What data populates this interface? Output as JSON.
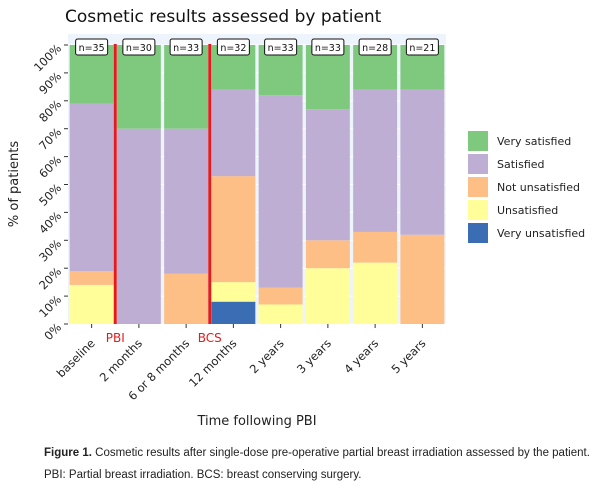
{
  "chart_data": {
    "type": "bar",
    "stacked": true,
    "title": "Cosmetic results assessed by patient",
    "xlabel": "Time following PBI",
    "ylabel": "% of patients",
    "ylim": [
      0,
      100
    ],
    "yticks": [
      "0%",
      "10%",
      "20%",
      "30%",
      "40%",
      "50%",
      "60%",
      "70%",
      "80%",
      "90%",
      "100%"
    ],
    "categories": [
      "baseline",
      "2 months",
      "6 or 8 months",
      "12 months",
      "2 years",
      "3 years",
      "4 years",
      "5 years"
    ],
    "n_labels": [
      "n=35",
      "n=30",
      "n=33",
      "n=32",
      "n=33",
      "n=33",
      "n=28",
      "n=21"
    ],
    "series": [
      {
        "name": "Very unsatisfied",
        "color": "#3b6db4",
        "values": [
          0,
          0,
          0,
          8,
          0,
          0,
          0,
          0
        ]
      },
      {
        "name": "Unsatisfied",
        "color": "#fffe99",
        "values": [
          14,
          0,
          0,
          7,
          7,
          20,
          22,
          0
        ]
      },
      {
        "name": "Not unsatisfied",
        "color": "#fdbf86",
        "values": [
          5,
          0,
          18,
          38,
          6,
          10,
          11,
          32
        ]
      },
      {
        "name": "Satisfied",
        "color": "#beaed4",
        "values": [
          60,
          70,
          52,
          31,
          69,
          47,
          51,
          52
        ]
      },
      {
        "name": "Very satisfied",
        "color": "#7fc97f",
        "values": [
          21,
          30,
          30,
          16,
          18,
          23,
          16,
          16
        ]
      }
    ],
    "legend_order": [
      "Very satisfied",
      "Satisfied",
      "Not unsatisfied",
      "Unsatisfied",
      "Very unsatisfied"
    ],
    "legend_position": "right",
    "markers": [
      {
        "label": "PBI",
        "after_category": "baseline",
        "color": "#e41a1c"
      },
      {
        "label": "BCS",
        "after_category": "6 or 8 months",
        "color": "#e41a1c"
      }
    ],
    "grid": true
  },
  "caption": {
    "figure_label": "Figure 1.",
    "figure_text": "Cosmetic results after single-dose pre-operative partial breast irradiation assessed by the patient.",
    "note": "PBI: Partial breast irradiation. BCS: breast conserving surgery."
  }
}
